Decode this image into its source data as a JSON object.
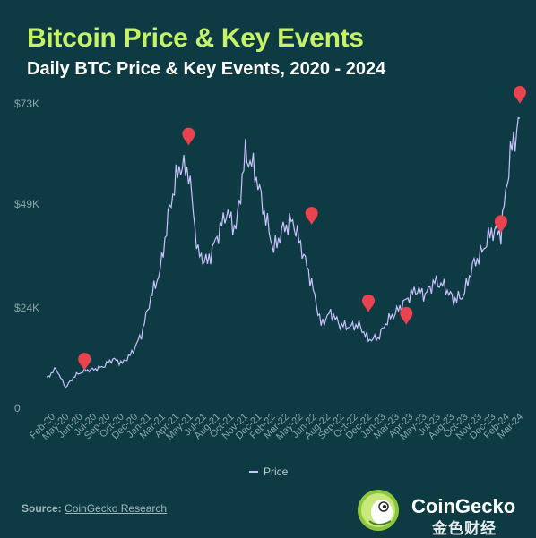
{
  "header": {
    "title": "Bitcoin Price & Key Events",
    "subtitle": "Daily BTC Price & Key Events, 2020 - 2024"
  },
  "footer": {
    "source_label": "Source:",
    "source_link": "CoinGecko Research",
    "brand": "CoinGecko",
    "watermark": "金色财经"
  },
  "colors": {
    "background": "#0e3a43",
    "title": "#c6f26a",
    "line": "#c9c3ff",
    "marker": "#e8434f",
    "tick": "#8aa5ab"
  },
  "chart_data": {
    "type": "line",
    "title": "Daily BTC Price & Key Events, 2020 - 2024",
    "xlabel": "",
    "ylabel": "",
    "ylim": [
      0,
      73000
    ],
    "yticks": [
      0,
      24000,
      49000,
      73000
    ],
    "ytick_labels": [
      "0",
      "$24K",
      "$49K",
      "$73K"
    ],
    "xtick_labels": [
      "Feb-20",
      "May-20",
      "Jun-20",
      "Jul-20",
      "Sep-20",
      "Oct-20",
      "Dec-20",
      "Jan-21",
      "Mar-21",
      "Apr-21",
      "May-21",
      "Jul-21",
      "Aug-21",
      "Oct-21",
      "Nov-21",
      "Dec-21",
      "Feb-22",
      "Mar-22",
      "May-22",
      "Jun-22",
      "Aug-22",
      "Sep-22",
      "Oct-22",
      "Dec-22",
      "Jan-23",
      "Mar-23",
      "Apr-23",
      "May-23",
      "Jul-23",
      "Aug-23",
      "Oct-23",
      "Nov-23",
      "Dec-23",
      "Feb-24",
      "Mar-24"
    ],
    "legend": [
      "Price"
    ],
    "legend_position": "bottom",
    "grid": false,
    "series": [
      {
        "name": "Price",
        "x": [
          "2020-01",
          "2020-02",
          "2020-03",
          "2020-04",
          "2020-05",
          "2020-06",
          "2020-07",
          "2020-08",
          "2020-09",
          "2020-10",
          "2020-11",
          "2020-12",
          "2021-01",
          "2021-02",
          "2021-03",
          "2021-04",
          "2021-05",
          "2021-06",
          "2021-07",
          "2021-08",
          "2021-09",
          "2021-10",
          "2021-11",
          "2021-12",
          "2022-01",
          "2022-02",
          "2022-03",
          "2022-04",
          "2022-05",
          "2022-06",
          "2022-07",
          "2022-08",
          "2022-09",
          "2022-10",
          "2022-11",
          "2022-12",
          "2023-01",
          "2023-02",
          "2023-03",
          "2023-04",
          "2023-05",
          "2023-06",
          "2023-07",
          "2023-08",
          "2023-09",
          "2023-10",
          "2023-11",
          "2023-12",
          "2024-01",
          "2024-02",
          "2024-03"
        ],
        "values": [
          7200,
          9500,
          5000,
          7800,
          9000,
          9300,
          10000,
          11800,
          10800,
          13200,
          17600,
          26500,
          33000,
          48000,
          58000,
          57000,
          37000,
          35000,
          41000,
          47000,
          43000,
          61000,
          57000,
          47000,
          38000,
          43000,
          45000,
          38000,
          30000,
          20000,
          23000,
          20000,
          19500,
          20000,
          16500,
          16800,
          21000,
          23200,
          26000,
          28500,
          27200,
          30400,
          29300,
          26000,
          26900,
          34000,
          37500,
          42500,
          42000,
          61000,
          69500
        ]
      }
    ],
    "events": [
      {
        "date": "2020-05",
        "price": 9000
      },
      {
        "date": "2021-04",
        "price": 63000
      },
      {
        "date": "2022-05",
        "price": 44000
      },
      {
        "date": "2022-11",
        "price": 23000
      },
      {
        "date": "2023-03",
        "price": 20000
      },
      {
        "date": "2024-01",
        "price": 42000
      },
      {
        "date": "2024-03",
        "price": 73000
      }
    ]
  }
}
